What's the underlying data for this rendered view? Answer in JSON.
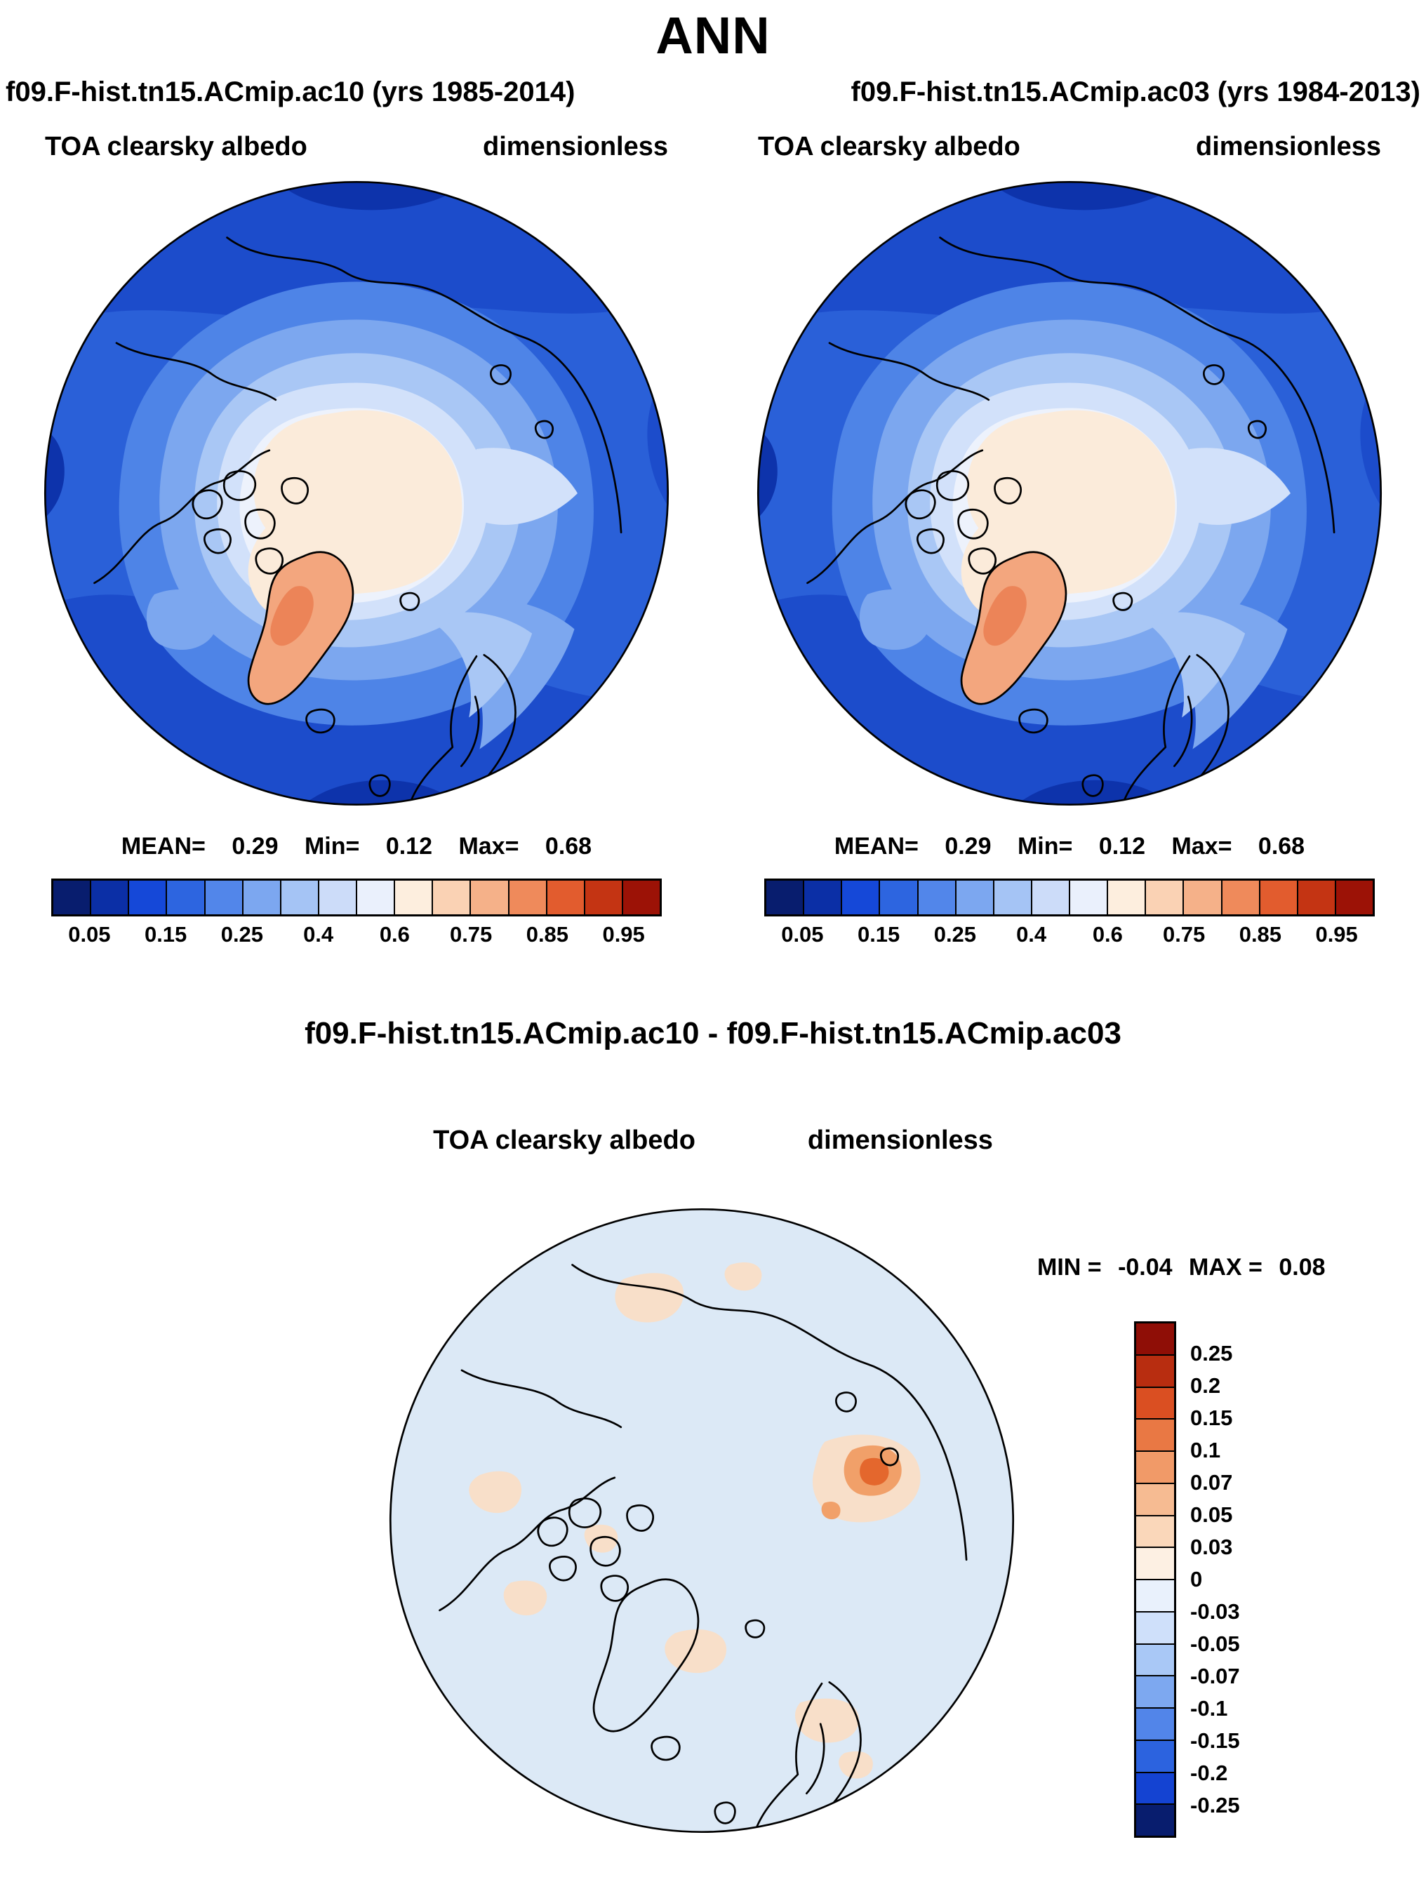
{
  "page": {
    "season_title": "ANN",
    "subtitle_left": "f09.F-hist.tn15.ACmip.ac10 (yrs 1985-2014)",
    "subtitle_right": "f09.F-hist.tn15.ACmip.ac03 (yrs 1984-2013)"
  },
  "panels": [
    {
      "field_label": "TOA clearsky albedo",
      "units": "dimensionless",
      "stats": {
        "mean_label": "MEAN=",
        "mean": "0.29",
        "min_label": "Min=",
        "min": "0.12",
        "max_label": "Max=",
        "max": "0.68"
      }
    },
    {
      "field_label": "TOA clearsky albedo",
      "units": "dimensionless",
      "stats": {
        "mean_label": "MEAN=",
        "mean": "0.29",
        "min_label": "Min=",
        "min": "0.12",
        "max_label": "Max=",
        "max": "0.68"
      }
    }
  ],
  "colorbar": {
    "orientation": "horizontal",
    "colors": [
      "#081D6E",
      "#0B2FA6",
      "#1548D8",
      "#2D65E0",
      "#5286EA",
      "#7CA7F0",
      "#A5C4F5",
      "#CCDCF9",
      "#EAF0FC",
      "#FDEEDE",
      "#FAD2B4",
      "#F5B189",
      "#EF8A5B",
      "#E25C2E",
      "#C43413",
      "#9C1206"
    ],
    "tick_labels": [
      "0.05",
      "0.15",
      "0.25",
      "0.4",
      "0.6",
      "0.75",
      "0.85",
      "0.95"
    ],
    "tick_boundary_indices": [
      1,
      3,
      5,
      7,
      9,
      11,
      13,
      15
    ]
  },
  "diff": {
    "title": "f09.F-hist.tn15.ACmip.ac10 - f09.F-hist.tn15.ACmip.ac03",
    "field_label": "TOA clearsky albedo",
    "units": "dimensionless",
    "min_label": "MIN =",
    "min_value": "-0.04",
    "max_label": "MAX =",
    "max_value": "0.08",
    "colorbar": {
      "orientation": "vertical",
      "colors": [
        "#8F0E06",
        "#B82D10",
        "#DA4F22",
        "#E97844",
        "#F19A68",
        "#F6BB92",
        "#FAD7BA",
        "#FDF0E3",
        "#E9F1FC",
        "#CFE0FA",
        "#A9C8F6",
        "#7DA8F0",
        "#5285E9",
        "#2C63DF",
        "#1443D2",
        "#081D6E"
      ],
      "labels": [
        "0.25",
        "0.2",
        "0.15",
        "0.1",
        "0.07",
        "0.05",
        "0.03",
        "0",
        "-0.03",
        "-0.05",
        "-0.07",
        "-0.1",
        "-0.15",
        "-0.2",
        "-0.25"
      ]
    }
  },
  "chart_data": [
    {
      "type": "heatmap",
      "subtype": "filled-contour-map",
      "projection": "north-polar-stereographic",
      "season": "ANN",
      "title": "f09.F-hist.tn15.ACmip.ac10 (yrs 1985-2014)",
      "variable": "TOA clearsky albedo",
      "units": "dimensionless",
      "stats": {
        "mean": 0.29,
        "min": 0.12,
        "max": 0.68
      },
      "contour_levels": [
        0.05,
        0.1,
        0.15,
        0.2,
        0.25,
        0.3,
        0.4,
        0.5,
        0.6,
        0.7,
        0.75,
        0.8,
        0.85,
        0.9,
        0.95
      ],
      "colorbar_tick_labels": [
        0.05,
        0.15,
        0.25,
        0.4,
        0.6,
        0.75,
        0.85,
        0.95
      ],
      "palette": "blue-white-red",
      "legend_position": "bottom",
      "notes": "Low albedo (blue) over open ocean, high albedo (pale/cream) over Arctic sea ice, Greenland ice sheet in orange/salmon (~0.6-0.7)"
    },
    {
      "type": "heatmap",
      "subtype": "filled-contour-map",
      "projection": "north-polar-stereographic",
      "season": "ANN",
      "title": "f09.F-hist.tn15.ACmip.ac03 (yrs 1984-2013)",
      "variable": "TOA clearsky albedo",
      "units": "dimensionless",
      "stats": {
        "mean": 0.29,
        "min": 0.12,
        "max": 0.68
      },
      "contour_levels": [
        0.05,
        0.1,
        0.15,
        0.2,
        0.25,
        0.3,
        0.4,
        0.5,
        0.6,
        0.7,
        0.75,
        0.8,
        0.85,
        0.9,
        0.95
      ],
      "colorbar_tick_labels": [
        0.05,
        0.15,
        0.25,
        0.4,
        0.6,
        0.75,
        0.85,
        0.95
      ],
      "palette": "blue-white-red",
      "legend_position": "bottom",
      "notes": "Low albedo (blue) over open ocean, high albedo (pale/cream) over Arctic sea ice, Greenland ice sheet in orange/salmon (~0.6-0.7)"
    },
    {
      "type": "heatmap",
      "subtype": "difference-map",
      "projection": "north-polar-stereographic",
      "season": "ANN",
      "title": "f09.F-hist.tn15.ACmip.ac10 - f09.F-hist.tn15.ACmip.ac03",
      "variable": "TOA clearsky albedo",
      "units": "dimensionless",
      "stats": {
        "min": -0.04,
        "max": 0.08
      },
      "contour_levels": [
        -0.25,
        -0.2,
        -0.15,
        -0.1,
        -0.07,
        -0.05,
        -0.03,
        0,
        0.03,
        0.05,
        0.07,
        0.1,
        0.15,
        0.2,
        0.25
      ],
      "palette": "blue-white-red",
      "legend_position": "right",
      "notes": "Differences mostly between -0.03 and 0; scattered weak positive (peach) patches over land and a stronger positive spot (~0.05-0.08) east of the pole"
    }
  ]
}
